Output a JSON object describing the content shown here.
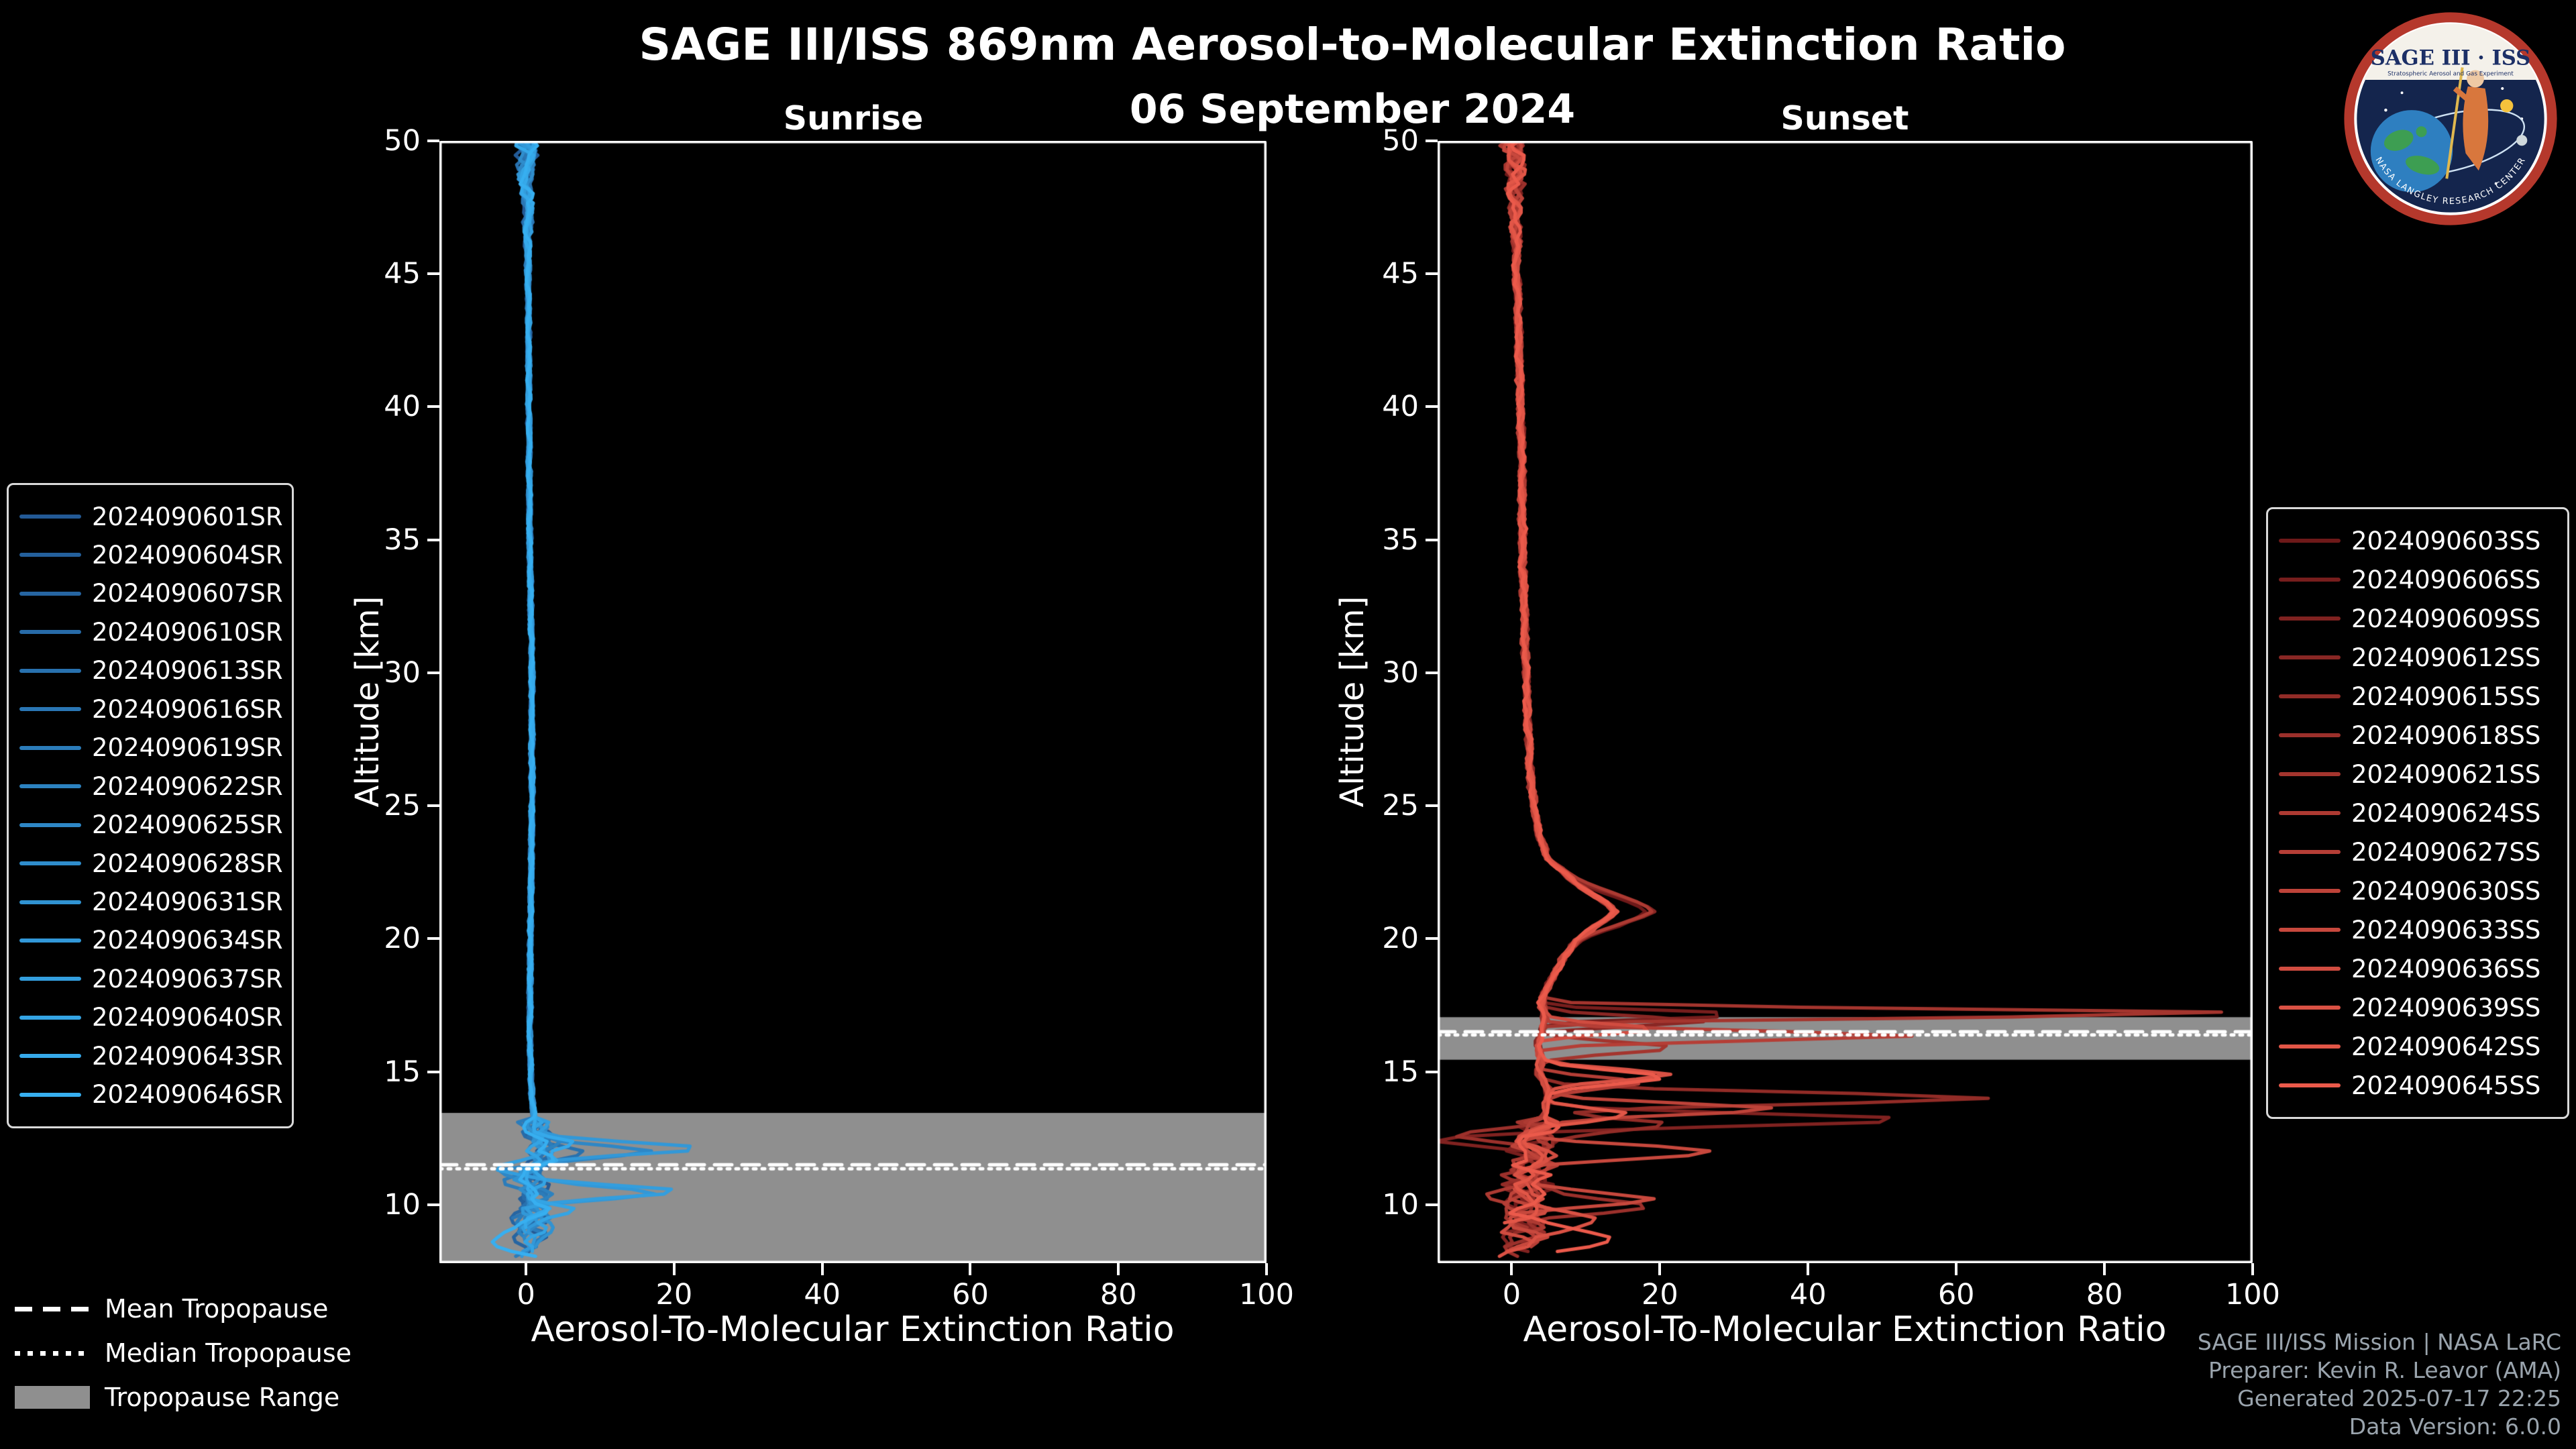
{
  "title": "SAGE III/ISS 869nm Aerosol-to-Molecular Extinction Ratio",
  "subtitle": "06 September 2024",
  "logo": {
    "title": "SAGE III · ISS",
    "subtitle": "Stratospheric Aerosol and Gas Experiment",
    "arc_text": "NASA LANGLEY RESEARCH CENTER"
  },
  "footer": {
    "credits": [
      "SAGE III/ISS Mission | NASA LaRC",
      "Preparer: Kevin R. Leavor (AMA)",
      "Generated 2025-07-17 22:25",
      "Data Version: 6.0.0"
    ]
  },
  "tropopause_legend": [
    {
      "label": "Mean Tropopause",
      "style": "dashed"
    },
    {
      "label": "Median Tropopause",
      "style": "dotted"
    },
    {
      "label": "Tropopause Range",
      "style": "patch"
    }
  ],
  "colors": {
    "background": "#000000",
    "frame": "#ffffff",
    "tropopause_band": "#8f8f8f",
    "tropopause_line": "#ffffff"
  },
  "chart_data": [
    {
      "type": "line",
      "title": "Sunrise",
      "xlabel": "Aerosol-To-Molecular Extinction Ratio",
      "ylabel": "Altitude [km]",
      "xlim": [
        -11.7,
        100
      ],
      "ylim": [
        7.8,
        50
      ],
      "xticks": [
        0,
        20,
        40,
        60,
        80,
        100
      ],
      "yticks": [
        10,
        15,
        20,
        25,
        30,
        35,
        40,
        45,
        50
      ],
      "tropopause": {
        "mean_km": 11.5,
        "median_km": 11.35,
        "range_km": [
          7.8,
          13.45
        ]
      },
      "base_profile": [
        [
          50,
          0
        ],
        [
          48,
          0.2
        ],
        [
          45,
          0.3
        ],
        [
          40,
          0.4
        ],
        [
          35,
          0.5
        ],
        [
          30,
          0.8
        ],
        [
          25,
          0.8
        ],
        [
          20,
          0.6
        ],
        [
          16,
          0.5
        ],
        [
          14,
          0.8
        ],
        [
          13,
          1.2
        ],
        [
          12.2,
          2.5
        ],
        [
          11.5,
          1.0
        ],
        [
          11,
          0.5
        ],
        [
          10.5,
          1.5
        ],
        [
          10,
          0.5
        ],
        [
          9.5,
          0.8
        ],
        [
          9,
          0.3
        ],
        [
          8.5,
          0.5
        ],
        [
          7.9,
          0
        ]
      ],
      "noise": {
        "top": 1.4,
        "mid": 0.3,
        "low": 2.0,
        "low_start": 13.2
      },
      "series": [
        {
          "name": "2024090601SR",
          "color": "#235a96",
          "seed": 11,
          "min_alt": 8.6,
          "spikes": []
        },
        {
          "name": "2024090604SR",
          "color": "#24609c",
          "seed": 12,
          "min_alt": 9.2,
          "spikes": []
        },
        {
          "name": "2024090607SR",
          "color": "#2665a2",
          "seed": 13,
          "min_alt": 8.1,
          "spikes": [
            [
              9.4,
              -4.5,
              0.3
            ]
          ]
        },
        {
          "name": "2024090610SR",
          "color": "#276ba8",
          "seed": 14,
          "min_alt": 8.9,
          "spikes": []
        },
        {
          "name": "2024090613SR",
          "color": "#2871ae",
          "seed": 15,
          "min_alt": 8.3,
          "spikes": [
            [
              11.9,
              6.5,
              0.3
            ]
          ]
        },
        {
          "name": "2024090616SR",
          "color": "#2a76b4",
          "seed": 16,
          "min_alt": 9.4,
          "spikes": []
        },
        {
          "name": "2024090619SR",
          "color": "#2b7cba",
          "seed": 17,
          "min_alt": 8.0,
          "spikes": [
            [
              10.8,
              -3.5,
              0.25
            ]
          ]
        },
        {
          "name": "2024090622SR",
          "color": "#2c82c0",
          "seed": 18,
          "min_alt": 8.7,
          "spikes": []
        },
        {
          "name": "2024090625SR",
          "color": "#2e87c6",
          "seed": 19,
          "min_alt": 8.2,
          "spikes": [
            [
              12.0,
              13,
              0.3
            ],
            [
              11.3,
              -3,
              0.2
            ]
          ]
        },
        {
          "name": "2024090628SR",
          "color": "#2f8dcc",
          "seed": 20,
          "min_alt": 9.0,
          "spikes": []
        },
        {
          "name": "2024090631SR",
          "color": "#3093d2",
          "seed": 21,
          "min_alt": 8.4,
          "spikes": [
            [
              8.9,
              5,
              0.35
            ]
          ]
        },
        {
          "name": "2024090634SR",
          "color": "#3298d8",
          "seed": 22,
          "min_alt": 8.0,
          "spikes": [
            [
              12.1,
              20,
              0.32
            ],
            [
              10.4,
              16,
              0.3
            ]
          ]
        },
        {
          "name": "2024090637SR",
          "color": "#339ede",
          "seed": 23,
          "min_alt": 8.8,
          "spikes": [
            [
              10.5,
              18,
              0.3
            ],
            [
              11.4,
              -4,
              0.2
            ]
          ]
        },
        {
          "name": "2024090640SR",
          "color": "#34a4e4",
          "seed": 24,
          "min_alt": 8.1,
          "spikes": [
            [
              9.8,
              7,
              0.3
            ]
          ]
        },
        {
          "name": "2024090643SR",
          "color": "#36a9ea",
          "seed": 25,
          "min_alt": 9.1,
          "spikes": [
            [
              12.3,
              5,
              0.3
            ]
          ]
        },
        {
          "name": "2024090646SR",
          "color": "#37aff0",
          "seed": 26,
          "min_alt": 7.9,
          "spikes": [
            [
              8.6,
              -5,
              0.4
            ]
          ]
        }
      ]
    },
    {
      "type": "line",
      "title": "Sunset",
      "xlabel": "Aerosol-To-Molecular Extinction Ratio",
      "ylabel": "Altitude [km]",
      "xlim": [
        -10,
        100
      ],
      "ylim": [
        7.8,
        50
      ],
      "xticks": [
        0,
        20,
        40,
        60,
        80,
        100
      ],
      "yticks": [
        10,
        15,
        20,
        25,
        30,
        35,
        40,
        45,
        50
      ],
      "tropopause": {
        "mean_km": 16.5,
        "median_km": 16.38,
        "range_km": [
          15.45,
          17.05
        ]
      },
      "base_profile": [
        [
          50,
          0.3
        ],
        [
          48,
          0.4
        ],
        [
          46,
          0.6
        ],
        [
          44,
          0.8
        ],
        [
          42,
          1.0
        ],
        [
          40,
          1.2
        ],
        [
          37,
          1.4
        ],
        [
          34,
          1.5
        ],
        [
          31,
          1.8
        ],
        [
          28,
          2.2
        ],
        [
          26,
          2.6
        ],
        [
          24,
          3.5
        ],
        [
          23,
          5
        ],
        [
          22,
          9
        ],
        [
          21.3,
          13
        ],
        [
          21,
          14
        ],
        [
          20.6,
          12
        ],
        [
          20,
          9
        ],
        [
          19.3,
          7
        ],
        [
          18.5,
          5.5
        ],
        [
          18,
          4.5
        ],
        [
          17.5,
          4
        ],
        [
          17,
          4.5
        ],
        [
          16.5,
          4
        ],
        [
          16,
          3.5
        ],
        [
          15.5,
          4
        ],
        [
          15,
          3.5
        ],
        [
          14.3,
          5
        ],
        [
          13.5,
          4.5
        ],
        [
          13,
          4
        ],
        [
          12.5,
          3.5
        ],
        [
          12,
          3
        ],
        [
          11,
          2.5
        ],
        [
          10,
          2
        ],
        [
          9,
          1.5
        ],
        [
          8.2,
          1
        ]
      ],
      "noise": {
        "top": 1.4,
        "mid": 0.5,
        "low": 3.0,
        "low_start": 13.2
      },
      "series": [
        {
          "name": "2024090603SS",
          "color": "#6e1919",
          "seed": 31,
          "min_alt": 9.5,
          "spikes": [
            [
              21.0,
              4,
              0.9
            ]
          ]
        },
        {
          "name": "2024090606SS",
          "color": "#771e1d",
          "seed": 32,
          "min_alt": 8.6,
          "spikes": [
            [
              17.15,
              28,
              0.2
            ]
          ]
        },
        {
          "name": "2024090609SS",
          "color": "#802220",
          "seed": 33,
          "min_alt": 8.2,
          "spikes": [
            [
              13.2,
              50,
              0.3
            ],
            [
              12.4,
              -11,
              0.3
            ]
          ]
        },
        {
          "name": "2024090612SS",
          "color": "#892724",
          "seed": 34,
          "min_alt": 10.0,
          "spikes": [
            [
              16.9,
              22,
              0.25
            ],
            [
              21.1,
              5,
              0.8
            ]
          ]
        },
        {
          "name": "2024090615SS",
          "color": "#922c27",
          "seed": 35,
          "min_alt": 8.4,
          "spikes": [
            [
              14.0,
              60,
              0.3
            ],
            [
              13.0,
              18,
              0.3
            ]
          ]
        },
        {
          "name": "2024090618SS",
          "color": "#9b302b",
          "seed": 36,
          "min_alt": 8.0,
          "spikes": [
            [
              9.9,
              16,
              0.4
            ],
            [
              12.6,
              -9,
              0.3
            ]
          ]
        },
        {
          "name": "2024090621SS",
          "color": "#a4352e",
          "seed": 37,
          "min_alt": 9.0,
          "spikes": [
            [
              17.2,
              95,
              0.22
            ],
            [
              15.9,
              18,
              0.3
            ]
          ]
        },
        {
          "name": "2024090624SS",
          "color": "#ad3a32",
          "seed": 38,
          "min_alt": 8.8,
          "spikes": [
            [
              21.2,
              5,
              0.8
            ],
            [
              10.4,
              -7,
              0.3
            ]
          ]
        },
        {
          "name": "2024090627SS",
          "color": "#b53e36",
          "seed": 39,
          "min_alt": 8.3,
          "spikes": [
            [
              16.35,
              50,
              0.25
            ],
            [
              14.6,
              13,
              0.3
            ]
          ]
        },
        {
          "name": "2024090630SS",
          "color": "#be4339",
          "seed": 40,
          "min_alt": 9.7,
          "spikes": [
            [
              13.6,
              31,
              0.3
            ]
          ]
        },
        {
          "name": "2024090633SS",
          "color": "#c7483d",
          "seed": 41,
          "min_alt": 8.1,
          "spikes": [
            [
              12.0,
              22,
              0.35
            ],
            [
              10.2,
              17,
              0.3
            ]
          ]
        },
        {
          "name": "2024090636SS",
          "color": "#d04c40",
          "seed": 42,
          "min_alt": 8.5,
          "spikes": [
            [
              16.6,
              16,
              0.25
            ]
          ]
        },
        {
          "name": "2024090639SS",
          "color": "#d95144",
          "seed": 43,
          "min_alt": 8.0,
          "spikes": [
            [
              14.9,
              18,
              0.3
            ],
            [
              9.4,
              11,
              0.4
            ]
          ]
        },
        {
          "name": "2024090642SS",
          "color": "#e25647",
          "seed": 44,
          "min_alt": 9.3,
          "spikes": [
            [
              13.4,
              11,
              0.3
            ]
          ]
        },
        {
          "name": "2024090645SS",
          "color": "#eb5a4b",
          "seed": 45,
          "min_alt": 8.2,
          "spikes": [
            [
              14.8,
              17,
              0.35
            ],
            [
              8.8,
              13,
              0.5
            ]
          ]
        }
      ]
    }
  ]
}
